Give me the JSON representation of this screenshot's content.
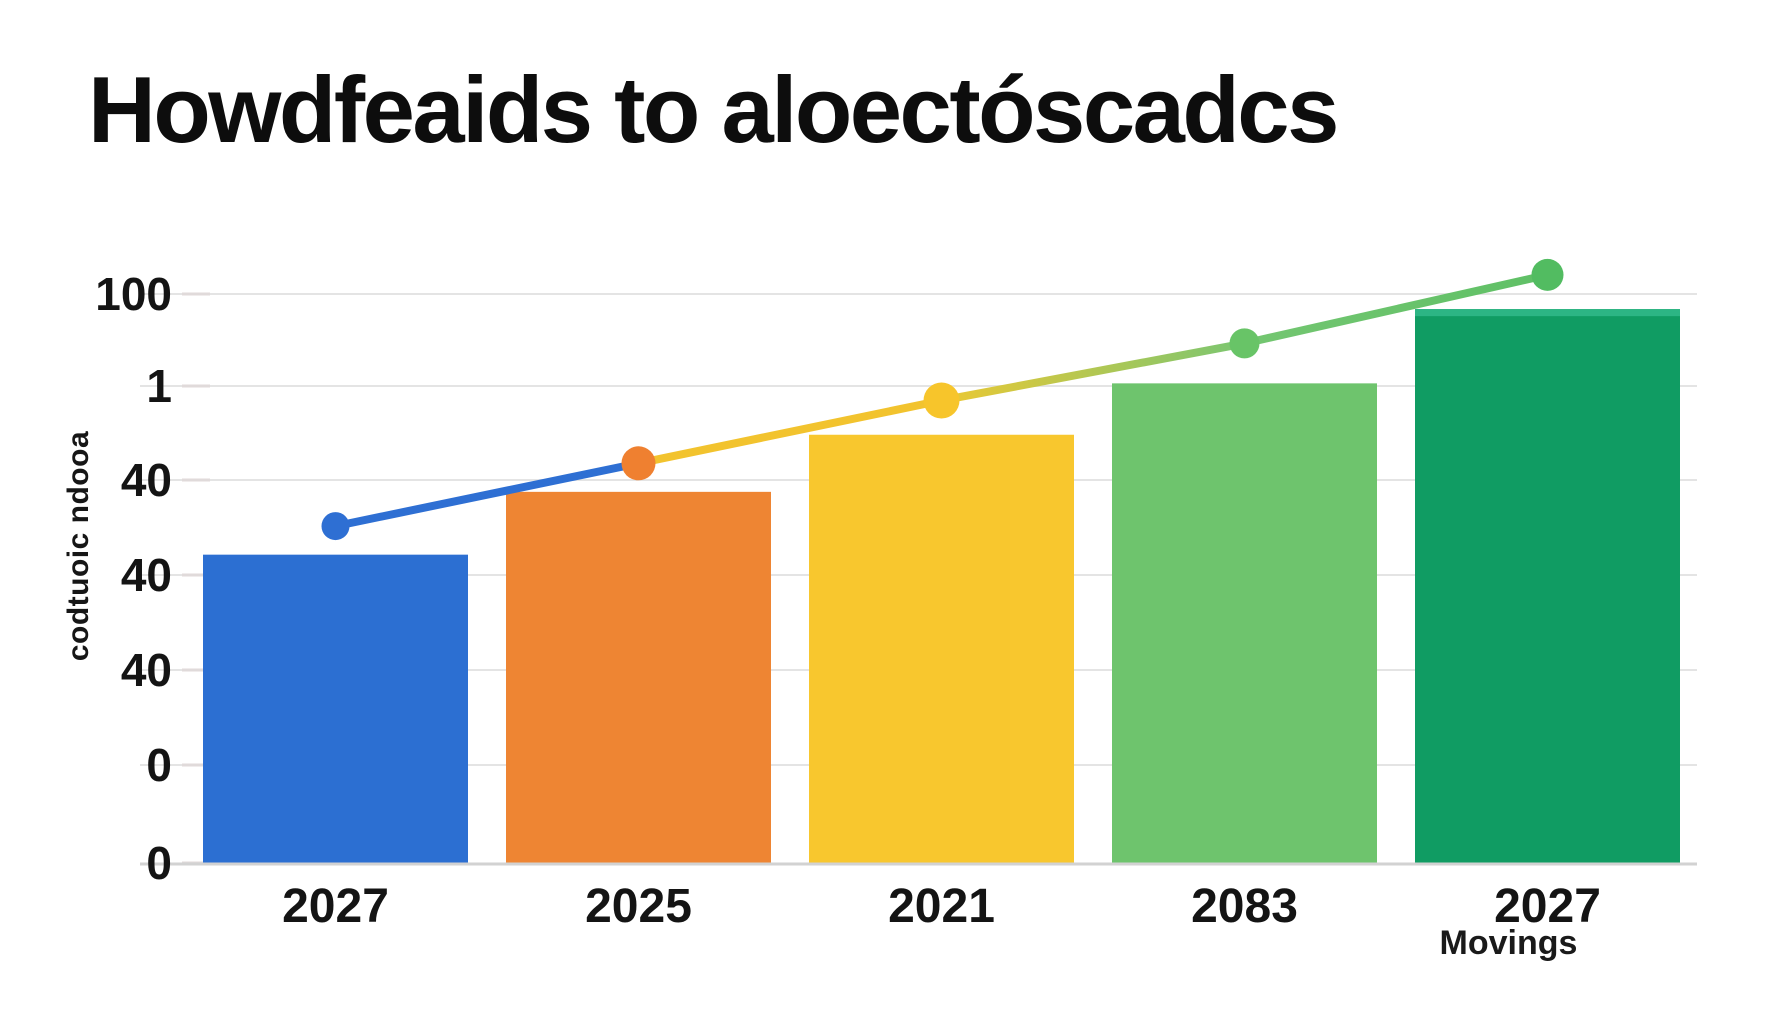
{
  "page": {
    "background": "#ffffff"
  },
  "title": {
    "text": "Howdfeaids to aloectóscadcs",
    "color": "#0d0d0d"
  },
  "chart_data": {
    "type": "bar",
    "title": "Howdfeaids to aloectóscadcs",
    "categories": [
      "2027",
      "2025",
      "2021",
      "2083",
      "2027"
    ],
    "x_sublabels": [
      "",
      "",
      "",
      "",
      "Movings"
    ],
    "xlabel": "",
    "ylabel": "codtuoic ndooa",
    "y_tick_labels": [
      "100",
      "1",
      "40",
      "40",
      "40",
      "0",
      "0"
    ],
    "ylim": [
      0,
      120
    ],
    "grid": true,
    "legend": false,
    "series": [
      {
        "name": "bars",
        "type": "bar",
        "values": [
          54,
          65,
          75,
          84,
          97
        ],
        "colors": [
          "#2c6fd2",
          "#ee8533",
          "#f8c72e",
          "#6ec46d",
          "#109c63"
        ],
        "bar_top_edge_colors": [
          null,
          null,
          null,
          null,
          "#2cb584"
        ]
      },
      {
        "name": "trend",
        "type": "line",
        "values": [
          59,
          70,
          81,
          91,
          103
        ],
        "point_colors": [
          "#2e6fd3",
          "#ef8030",
          "#f7c52b",
          "#68c467",
          "#52bc61"
        ],
        "segment_colors": [
          "#2e6fd3",
          "#f2c32e",
          "gradient:#ecc833,#79c672",
          "gradient:#74c671,#5fc066"
        ]
      }
    ],
    "axis_colors": {
      "grid": "#e4e4e4",
      "baseline": "#d2d2d2",
      "tick": "#e0dada",
      "text": "#141414"
    }
  }
}
